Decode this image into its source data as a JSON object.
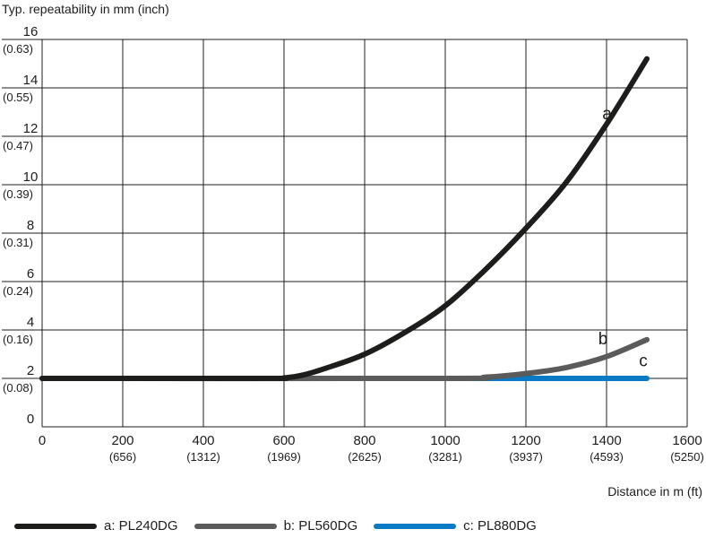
{
  "chart_data": {
    "type": "line",
    "ylabel": "Typ. repeatability in mm (inch)",
    "xlabel": "Distance in m (ft)",
    "xlim": [
      0,
      1600
    ],
    "ylim": [
      0,
      16
    ],
    "grid": true,
    "legend_position": "bottom",
    "x_ticks": [
      {
        "value": 0,
        "label": "0",
        "sub": ""
      },
      {
        "value": 200,
        "label": "200",
        "sub": "(656)"
      },
      {
        "value": 400,
        "label": "400",
        "sub": "(1312)"
      },
      {
        "value": 600,
        "label": "600",
        "sub": "(1969)"
      },
      {
        "value": 800,
        "label": "800",
        "sub": "(2625)"
      },
      {
        "value": 1000,
        "label": "1000",
        "sub": "(3281)"
      },
      {
        "value": 1200,
        "label": "1200",
        "sub": "(3937)"
      },
      {
        "value": 1400,
        "label": "1400",
        "sub": "(4593)"
      },
      {
        "value": 1600,
        "label": "1600",
        "sub": "(5250)"
      }
    ],
    "y_ticks": [
      {
        "value": 0,
        "label": "0",
        "sub": ""
      },
      {
        "value": 2,
        "label": "2",
        "sub": "(0.08)"
      },
      {
        "value": 4,
        "label": "4",
        "sub": "(0.16)"
      },
      {
        "value": 6,
        "label": "6",
        "sub": "(0.24)"
      },
      {
        "value": 8,
        "label": "8",
        "sub": "(0.31)"
      },
      {
        "value": 10,
        "label": "10",
        "sub": "(0.39)"
      },
      {
        "value": 12,
        "label": "12",
        "sub": "(0.47)"
      },
      {
        "value": 14,
        "label": "14",
        "sub": "(0.55)"
      },
      {
        "value": 16,
        "label": "16",
        "sub": "(0.63)"
      }
    ],
    "series": [
      {
        "name": "a: PL240DG",
        "curve_label": "a",
        "label_at": [
          1370,
          12.7
        ],
        "color": "#1d1d1b",
        "points": [
          [
            0,
            2
          ],
          [
            550,
            2
          ],
          [
            600,
            2.02
          ],
          [
            650,
            2.15
          ],
          [
            700,
            2.4
          ],
          [
            800,
            3.0
          ],
          [
            900,
            3.9
          ],
          [
            1000,
            5.0
          ],
          [
            1100,
            6.5
          ],
          [
            1200,
            8.2
          ],
          [
            1300,
            10.1
          ],
          [
            1400,
            12.5
          ],
          [
            1500,
            15.2
          ]
        ]
      },
      {
        "name": "b: PL560DG",
        "curve_label": "b",
        "label_at": [
          1360,
          3.4
        ],
        "color": "#5b5b5b",
        "points": [
          [
            0,
            2
          ],
          [
            1000,
            2
          ],
          [
            1100,
            2.05
          ],
          [
            1200,
            2.2
          ],
          [
            1300,
            2.45
          ],
          [
            1400,
            2.9
          ],
          [
            1500,
            3.6
          ]
        ]
      },
      {
        "name": "c: PL880DG",
        "curve_label": "c",
        "label_at": [
          1460,
          2.5
        ],
        "color": "#0a7ac4",
        "points": [
          [
            0,
            2
          ],
          [
            1500,
            2
          ]
        ]
      }
    ]
  }
}
